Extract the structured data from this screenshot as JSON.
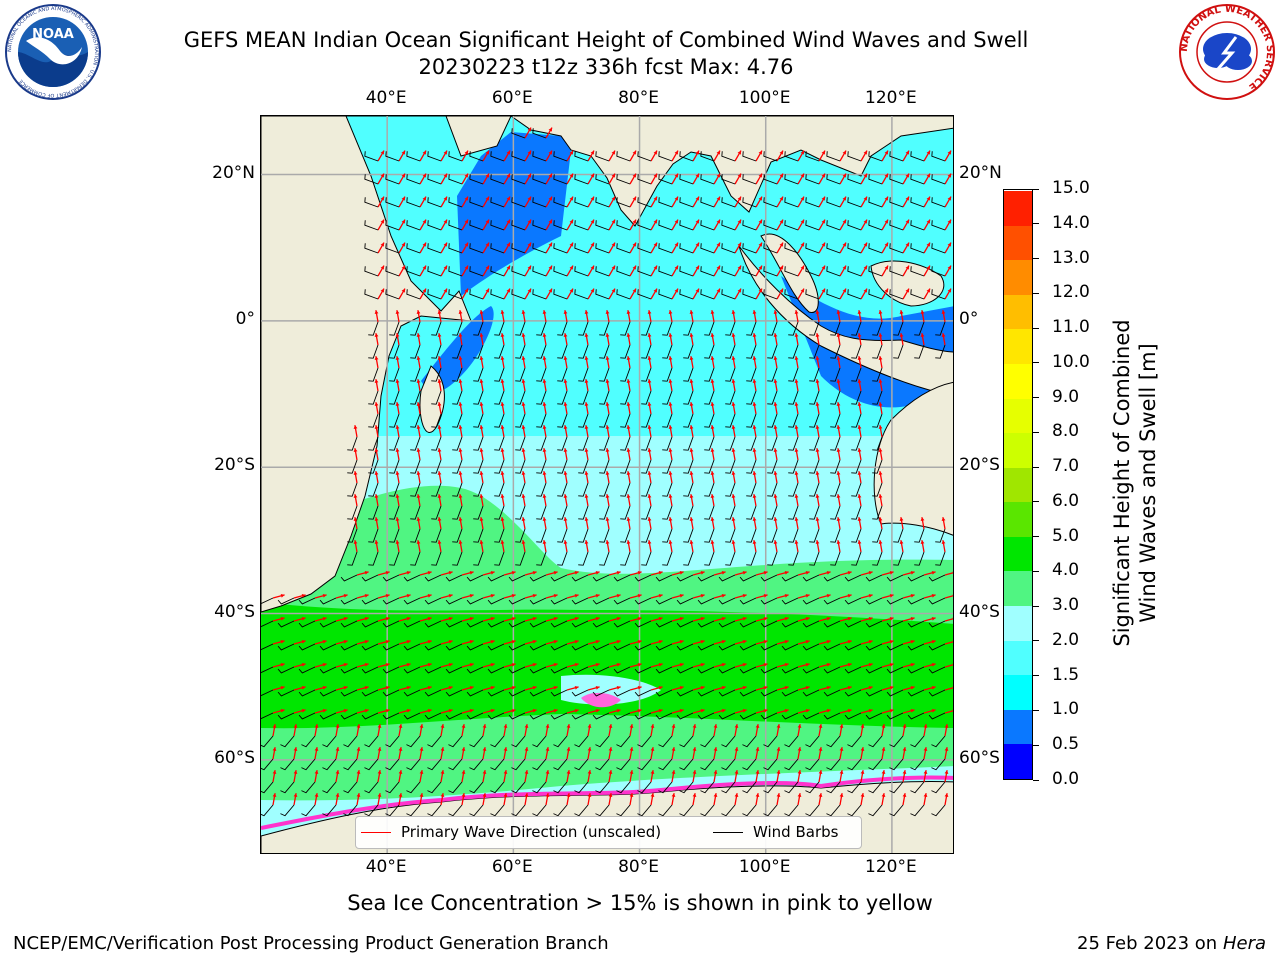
{
  "title": {
    "line1": "GEFS MEAN Indian Ocean Significant Height of Combined Wind Waves and Swell",
    "line2": "20230223 t12z 336h fcst   Max: 4.76"
  },
  "logos": {
    "left": "NOAA",
    "left_ring": "NATIONAL OCEANIC AND ATMOSPHERIC ADMINISTRATION · U.S. DEPARTMENT OF COMMERCE",
    "right_ring": "NATIONAL WEATHER SERVICE"
  },
  "axes": {
    "lon_ticks": [
      "40°E",
      "60°E",
      "80°E",
      "100°E",
      "120°E"
    ],
    "lon_values": [
      40,
      60,
      80,
      100,
      120
    ],
    "lat_ticks": [
      "20°N",
      "0°",
      "20°S",
      "40°S",
      "60°S"
    ],
    "lat_values": [
      20,
      0,
      -20,
      -40,
      -60
    ],
    "lon_range": [
      20,
      130
    ],
    "lat_range": [
      28,
      -73
    ]
  },
  "legend": {
    "wave": "Primary Wave Direction (unscaled)",
    "wind": "Wind Barbs",
    "wave_color": "#ff0000",
    "wind_color": "#000000"
  },
  "colorbar": {
    "label_line1": "Significant Height of Combined",
    "label_line2": "Wind Waves and Swell [m]",
    "ticks": [
      "0.0",
      "0.5",
      "1.0",
      "1.5",
      "2.0",
      "3.0",
      "4.0",
      "5.0",
      "6.0",
      "7.0",
      "8.0",
      "9.0",
      "10.0",
      "11.0",
      "12.0",
      "13.0",
      "14.0",
      "15.0"
    ],
    "colors": [
      "#0000ff",
      "#0a78ff",
      "#00ffff",
      "#50ffff",
      "#a0ffff",
      "#50f582",
      "#00e600",
      "#5ae600",
      "#a0e600",
      "#cdff00",
      "#e6ff00",
      "#ffff00",
      "#ffe600",
      "#ffbe00",
      "#ff8c00",
      "#ff5000",
      "#ff2000"
    ]
  },
  "chart_data": {
    "type": "heatmap",
    "variable": "Significant Height of Combined Wind Waves and Swell",
    "units": "m",
    "max": 4.76,
    "run": "20230223 t12z",
    "forecast_hour": "336h",
    "bands": [
      {
        "region": "coastal seas (Arabian Sea north, Bay of Bengal fringe, Indonesian seas)",
        "range_m": [
          0.5,
          1.0
        ]
      },
      {
        "region": "tropical Indian Ocean 20°N–25°S",
        "range_m": [
          1.0,
          2.0
        ]
      },
      {
        "region": "subtropics 25°S–42°S",
        "range_m": [
          2.0,
          3.0
        ]
      },
      {
        "region": "mid-latitudes 42°S–48°S and 62°S–68°S",
        "range_m": [
          3.0,
          4.0
        ]
      },
      {
        "region": "Southern Ocean storm track 48°S–60°S",
        "range_m": [
          4.0,
          5.0
        ]
      }
    ],
    "sea_ice_note": "pink to yellow"
  },
  "footer": {
    "note": "Sea Ice Concentration > 15% is shown in pink to yellow",
    "left": "NCEP/EMC/Verification Post Processing Product Generation Branch",
    "date": "25 Feb 2023 on",
    "machine": "Hera"
  }
}
